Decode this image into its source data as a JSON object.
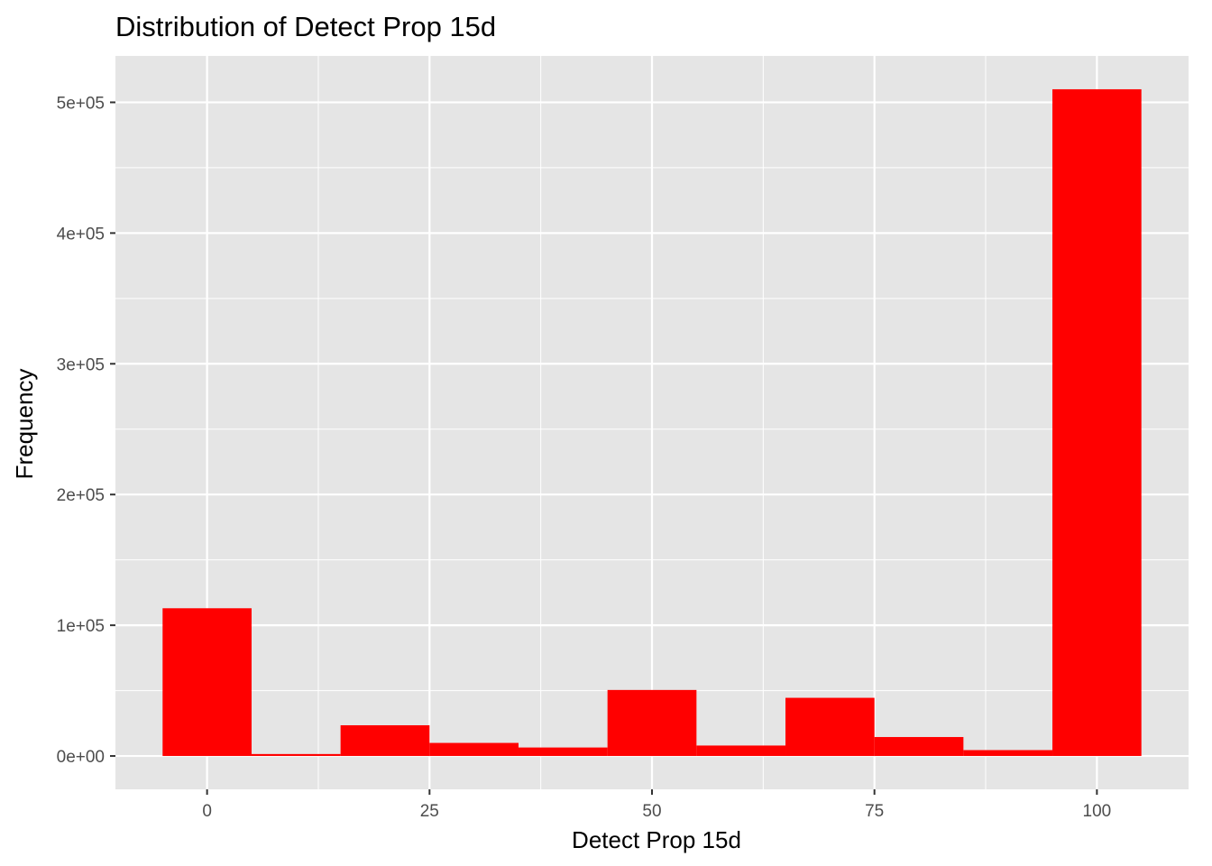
{
  "chart_data": {
    "type": "bar",
    "title": "Distribution of Detect Prop 15d",
    "xlabel": "Detect Prop 15d",
    "ylabel": "Frequency",
    "bin_width": 10,
    "bins": [
      {
        "x": 0,
        "value": 113000
      },
      {
        "x": 10,
        "value": 1500
      },
      {
        "x": 20,
        "value": 23500
      },
      {
        "x": 30,
        "value": 10000
      },
      {
        "x": 40,
        "value": 6500
      },
      {
        "x": 50,
        "value": 50500
      },
      {
        "x": 60,
        "value": 8000
      },
      {
        "x": 70,
        "value": 44500
      },
      {
        "x": 80,
        "value": 14500
      },
      {
        "x": 90,
        "value": 4500
      },
      {
        "x": 100,
        "value": 510000
      }
    ],
    "xlim": [
      -10.3,
      110.3
    ],
    "ylim": [
      -25500,
      535500
    ],
    "x_ticks": [
      {
        "value": 0,
        "label": "0"
      },
      {
        "value": 25,
        "label": "25"
      },
      {
        "value": 50,
        "label": "50"
      },
      {
        "value": 75,
        "label": "75"
      },
      {
        "value": 100,
        "label": "100"
      }
    ],
    "y_ticks": [
      {
        "value": 0,
        "label": "0e+00"
      },
      {
        "value": 100000,
        "label": "1e+05"
      },
      {
        "value": 200000,
        "label": "2e+05"
      },
      {
        "value": 300000,
        "label": "3e+05"
      },
      {
        "value": 400000,
        "label": "4e+05"
      },
      {
        "value": 500000,
        "label": "5e+05"
      }
    ],
    "bar_color": "#ff0000",
    "panel_background": "#e5e5e5",
    "grid_color": "#ffffff",
    "grid": true,
    "legend": "none"
  }
}
